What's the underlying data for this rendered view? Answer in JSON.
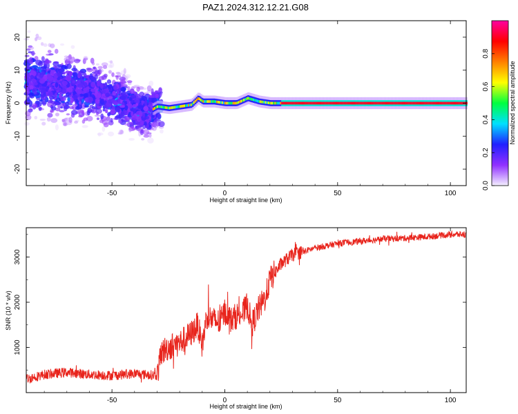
{
  "title": "PAZ1.2024.312.12.21.G08",
  "chart_data": [
    {
      "type": "heatmap",
      "xlabel": "Height of straight line (km)",
      "ylabel": "Frequency (Hz)",
      "xlim": [
        -88,
        107
      ],
      "ylim": [
        -25,
        25
      ],
      "xticks": [
        -50,
        0,
        50,
        100
      ],
      "yticks": [
        -20,
        -10,
        0,
        10,
        20
      ],
      "colorbar": {
        "label": "Normalized spectral amplitude",
        "range": [
          0,
          1
        ],
        "ticks": [
          "0.0",
          "0.2",
          "0.4",
          "0.6",
          "0.8"
        ],
        "colors": [
          "#f4f0ff",
          "#9030ff",
          "#2020ff",
          "#00e0ff",
          "#00ff40",
          "#ffff00",
          "#ff8000",
          "#ff0000",
          "#ff00a0"
        ]
      },
      "ridge": {
        "x": [
          -88,
          -80,
          -70,
          -60,
          -50,
          -40,
          -35,
          -30,
          -25,
          -20,
          -15,
          -12,
          -10,
          -5,
          0,
          5,
          10,
          15,
          20,
          25,
          50,
          75,
          100,
          107
        ],
        "y": [
          7,
          6,
          5,
          4,
          1.5,
          -1.5,
          -3,
          -1,
          -1.5,
          -1,
          -0.5,
          1.5,
          0.5,
          0.5,
          0,
          0,
          1.5,
          0.5,
          0,
          0,
          0,
          0,
          0,
          0
        ]
      }
    },
    {
      "type": "line",
      "xlabel": "Height of straight line (km)",
      "ylabel": "SNR (10 * v/v)",
      "xlim": [
        -88,
        107
      ],
      "ylim": [
        0,
        3650
      ],
      "xticks": [
        -50,
        0,
        50,
        100
      ],
      "yticks": [
        1000,
        2000,
        3000
      ],
      "line_color": "#e8241c",
      "series": [
        {
          "x": [
            -88,
            -80,
            -70,
            -60,
            -50,
            -40,
            -35,
            -30,
            -28,
            -25,
            -20,
            -15,
            -12,
            -10,
            -8,
            -5,
            -2,
            0,
            3,
            5,
            8,
            10,
            12,
            15,
            18,
            20,
            25,
            30,
            40,
            50,
            60,
            70,
            80,
            90,
            100,
            107
          ],
          "y": [
            300,
            400,
            450,
            400,
            380,
            420,
            400,
            380,
            900,
            1000,
            1100,
            1300,
            1500,
            1050,
            1700,
            1600,
            1550,
            1800,
            1600,
            1700,
            1750,
            1950,
            1500,
            1850,
            2100,
            2500,
            2850,
            3050,
            3200,
            3300,
            3350,
            3400,
            3420,
            3450,
            3500,
            3500
          ]
        }
      ]
    }
  ]
}
